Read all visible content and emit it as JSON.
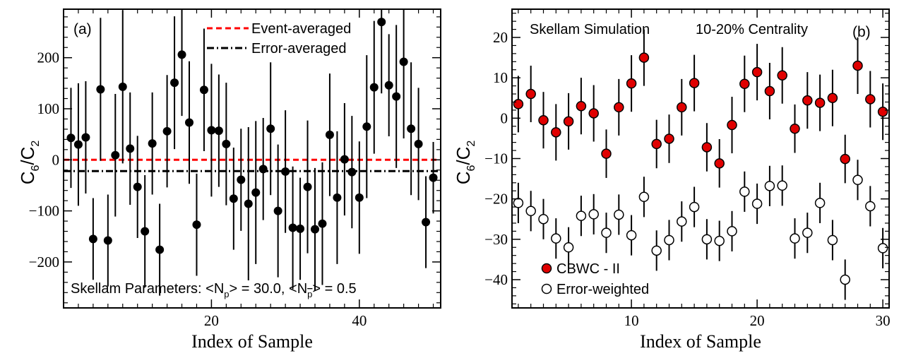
{
  "chart_data": [
    {
      "type": "scatter",
      "panel_label": "(a)",
      "xlabel": "Index of Sample",
      "ylabel_main": "C",
      "ylabel_sub1": "6",
      "ylabel_slash": "/C",
      "ylabel_sub2": "2",
      "xlim": [
        0,
        51
      ],
      "ylim": [
        -290,
        295
      ],
      "xticks": [
        20,
        40
      ],
      "yticks": [
        -200,
        -100,
        0,
        100,
        200
      ],
      "grid": false,
      "legend_position": "top-right",
      "legend": [
        {
          "label": "Event-averaged",
          "color": "#ff0000",
          "style": "dashed"
        },
        {
          "label": "Error-averaged",
          "color": "#000000",
          "style": "dashdot"
        }
      ],
      "reference_lines": [
        {
          "name": "Event-averaged",
          "y": 0,
          "color": "#ff0000"
        },
        {
          "name": "Error-averaged",
          "y": -22,
          "color": "#000000"
        }
      ],
      "annotation": {
        "prefix": "Skellam Parameters: <N",
        "sub1": "p",
        "mid": "> = 30.0, <N",
        "sub2": "p",
        "suffix": "> = 0.5"
      },
      "series": [
        {
          "marker": "filled-black",
          "x": [
            1,
            2,
            3,
            4,
            5,
            6,
            7,
            8,
            9,
            10,
            11,
            12,
            13,
            14,
            15,
            16,
            17,
            18,
            19,
            20,
            21,
            22,
            23,
            24,
            25,
            26,
            27,
            28,
            29,
            30,
            31,
            32,
            33,
            34,
            35,
            36,
            37,
            38,
            39,
            40,
            41,
            42,
            43,
            44,
            45,
            46,
            47,
            48,
            49,
            50
          ],
          "y": [
            43,
            30,
            44,
            -155,
            138,
            -158,
            9,
            143,
            22,
            -53,
            -140,
            32,
            -176,
            56,
            151,
            206,
            73,
            -127,
            137,
            58,
            57,
            31,
            -76,
            -39,
            -86,
            -64,
            -18,
            61,
            -100,
            -23,
            -133,
            -135,
            -53,
            -136,
            -125,
            49,
            -74,
            1,
            -24,
            -74,
            65,
            142,
            270,
            146,
            124,
            192,
            61,
            31,
            -122,
            -35
          ],
          "err": [
            98,
            120,
            110,
            80,
            140,
            90,
            120,
            150,
            110,
            100,
            110,
            100,
            90,
            110,
            130,
            120,
            120,
            100,
            120,
            130,
            110,
            120,
            100,
            100,
            150,
            140,
            100,
            130,
            130,
            120,
            120,
            100,
            130,
            120,
            120,
            120,
            130,
            110,
            110,
            110,
            140,
            130,
            140,
            100,
            140,
            150,
            130,
            110,
            90,
            70
          ]
        }
      ]
    },
    {
      "type": "scatter",
      "panel_label": "(b)",
      "title_left": "Skellam Simulation",
      "title_right": "10-20% Centrality",
      "xlabel": "Index of Sample",
      "ylabel_main": "C",
      "ylabel_sub1": "6",
      "ylabel_slash": "/C",
      "ylabel_sub2": "2",
      "xlim": [
        0.5,
        30.5
      ],
      "ylim": [
        -47,
        27
      ],
      "xticks": [
        10,
        20,
        30
      ],
      "yticks": [
        -40,
        -30,
        -20,
        -10,
        0,
        10,
        20
      ],
      "grid": false,
      "legend_position": "bottom-left",
      "series": [
        {
          "name": "CBWC - II",
          "marker": "filled-red",
          "color": "#e00000",
          "x": [
            1,
            2,
            3,
            4,
            5,
            6,
            7,
            8,
            9,
            10,
            11,
            12,
            13,
            14,
            15,
            16,
            17,
            18,
            19,
            20,
            21,
            22,
            23,
            24,
            25,
            26,
            27,
            28,
            29,
            30
          ],
          "y": [
            3.5,
            6,
            -0.5,
            -3.5,
            -0.8,
            3,
            1.2,
            -8.8,
            2.7,
            8.6,
            15,
            -6.4,
            -5.1,
            2.7,
            8.7,
            -7.2,
            -11.2,
            -1.7,
            8.5,
            11.4,
            6.7,
            10.6,
            -2.6,
            4.4,
            3.8,
            5,
            -10.1,
            13,
            4.7,
            1.6
          ],
          "err": [
            7,
            7,
            7,
            7,
            7,
            7,
            7,
            6,
            7,
            7,
            7,
            6,
            6,
            7,
            7,
            6,
            6,
            7,
            7,
            7,
            7,
            7,
            6,
            7,
            7,
            7,
            6,
            7,
            7,
            7
          ]
        },
        {
          "name": "Error-weighted",
          "marker": "open-black",
          "color": "#000000",
          "x": [
            1,
            2,
            3,
            4,
            5,
            6,
            7,
            8,
            9,
            10,
            11,
            12,
            13,
            14,
            15,
            16,
            17,
            18,
            19,
            20,
            21,
            22,
            23,
            24,
            25,
            26,
            27,
            28,
            29,
            30
          ],
          "y": [
            -21,
            -23,
            -25,
            -29.8,
            -32,
            -24.2,
            -23.8,
            -28.4,
            -23.9,
            -29,
            -19.5,
            -32.8,
            -30.2,
            -25.6,
            -22,
            -30,
            -30.4,
            -28,
            -18.2,
            -21.2,
            -16.8,
            -16.7,
            -29.8,
            -28.4,
            -21,
            -30.2,
            -40,
            -15.3,
            -21.8,
            -32.2
          ],
          "err": [
            5,
            5,
            5,
            5,
            5,
            5,
            5,
            5,
            5,
            5,
            5,
            5,
            5,
            5,
            5,
            5,
            5,
            5,
            5,
            5,
            5,
            5,
            5,
            5,
            5,
            5,
            5,
            5,
            5,
            5
          ]
        }
      ]
    }
  ]
}
